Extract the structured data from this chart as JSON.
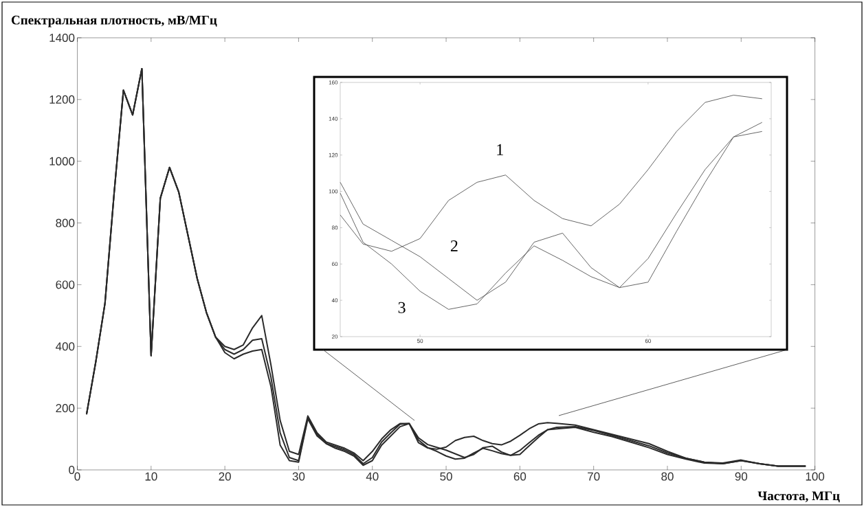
{
  "chart_data": [
    {
      "type": "line",
      "xlabel": "Частота, МГц",
      "ylabel": "Спектральная плотность, мВ/МГц",
      "x": [
        1.25,
        2.5,
        3.75,
        5,
        6.25,
        7.5,
        8.75,
        10,
        11.25,
        12.5,
        13.75,
        15,
        16.25,
        17.5,
        18.75,
        20,
        21.25,
        22.5,
        23.75,
        25,
        26.25,
        27.5,
        28.75,
        30,
        31.25,
        32.5,
        33.75,
        35,
        36.25,
        37.5,
        38.75,
        40,
        41.25,
        42.5,
        43.75,
        45,
        46.25,
        47.5,
        48.75,
        50,
        51.25,
        52.5,
        53.75,
        55,
        56.25,
        57.5,
        58.75,
        60,
        61.25,
        62.5,
        63.75,
        65,
        67.5,
        70,
        72.5,
        75,
        77.5,
        80,
        82.5,
        85,
        87.5,
        90,
        92.5,
        95,
        98.75
      ],
      "series": [
        {
          "color": "#2a2a2a",
          "values": [
            180,
            350,
            540,
            900,
            1230,
            1150,
            1300,
            370,
            880,
            980,
            900,
            760,
            620,
            510,
            430,
            400,
            390,
            405,
            460,
            500,
            340,
            160,
            60,
            50,
            175,
            120,
            90,
            80,
            70,
            55,
            30,
            60,
            100,
            130,
            150,
            150,
            88,
            71,
            67,
            74,
            95,
            105,
            109,
            95,
            85,
            81,
            93,
            112,
            133,
            149,
            153,
            151,
            145,
            130,
            115,
            100,
            85,
            60,
            38,
            25,
            22,
            32,
            20,
            12,
            12
          ]
        },
        {
          "color": "#2a2a2a",
          "values": [
            180,
            350,
            540,
            900,
            1230,
            1150,
            1300,
            370,
            880,
            980,
            900,
            760,
            620,
            510,
            430,
            390,
            375,
            390,
            420,
            425,
            300,
            120,
            40,
            30,
            170,
            115,
            85,
            75,
            65,
            50,
            20,
            40,
            90,
            120,
            148,
            150,
            104,
            82,
            73,
            64,
            52,
            40,
            50,
            72,
            77,
            58,
            47,
            50,
            78,
            105,
            130,
            138,
            140,
            128,
            112,
            95,
            78,
            55,
            38,
            25,
            20,
            30,
            20,
            12,
            12
          ]
        },
        {
          "color": "#2a2a2a",
          "values": [
            180,
            350,
            540,
            900,
            1230,
            1150,
            1300,
            370,
            880,
            980,
            900,
            760,
            620,
            510,
            430,
            380,
            360,
            375,
            385,
            390,
            270,
            80,
            30,
            25,
            165,
            110,
            85,
            70,
            60,
            45,
            15,
            30,
            80,
            110,
            140,
            150,
            97,
            72,
            60,
            45,
            35,
            38,
            55,
            70,
            62,
            53,
            47,
            63,
            88,
            112,
            130,
            133,
            138,
            122,
            108,
            90,
            72,
            50,
            35,
            22,
            20,
            30,
            20,
            12,
            12
          ]
        }
      ],
      "xlim": [
        0,
        100
      ],
      "ylim": [
        0,
        1400
      ],
      "xticks": [
        0,
        10,
        20,
        30,
        40,
        50,
        60,
        70,
        80,
        90,
        100
      ],
      "yticks": [
        0,
        200,
        400,
        600,
        800,
        1000,
        1200,
        1400
      ]
    },
    {
      "type": "line",
      "x": [
        46.5,
        47.5,
        48.75,
        50,
        51.25,
        52.5,
        53.75,
        55,
        56.25,
        57.5,
        58.75,
        60,
        61.25,
        62.5,
        63.75,
        65
      ],
      "series": [
        {
          "color": "#555555",
          "values": [
            87,
            71,
            67,
            74,
            95,
            105,
            109,
            95,
            85,
            81,
            93,
            112,
            133,
            149,
            153,
            151
          ]
        },
        {
          "color": "#555555",
          "values": [
            105,
            82,
            73,
            64,
            52,
            40,
            50,
            72,
            77,
            58,
            47,
            50,
            78,
            105,
            130,
            138
          ]
        },
        {
          "color": "#555555",
          "values": [
            99,
            72,
            60,
            45,
            35,
            38,
            55,
            70,
            62,
            53,
            47,
            63,
            88,
            112,
            130,
            133
          ]
        }
      ],
      "xlim": [
        46.5,
        65.4
      ],
      "ylim": [
        20,
        160
      ],
      "xticks": [
        50,
        60
      ],
      "yticks": [
        20,
        40,
        60,
        80,
        100,
        120,
        140,
        160
      ],
      "annotations": [
        {
          "text": "1",
          "x": 53.5,
          "y": 123
        },
        {
          "text": "2",
          "x": 51.5,
          "y": 70
        },
        {
          "text": "3",
          "x": 49.2,
          "y": 36
        }
      ]
    }
  ]
}
